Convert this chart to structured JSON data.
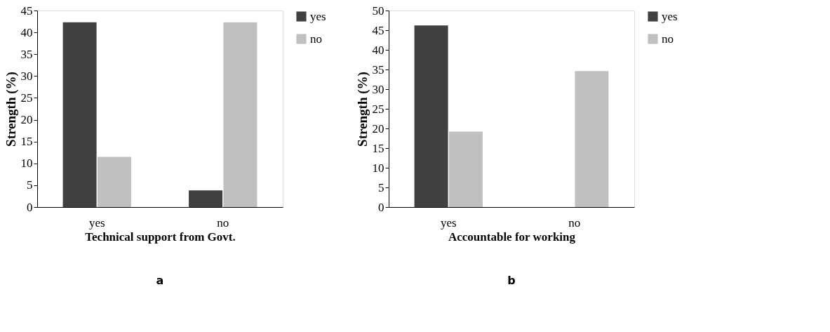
{
  "chart_data": [
    {
      "type": "bar",
      "xlabel": "Technical support from Govt.",
      "ylabel": "Strength (%)",
      "categories": [
        "yes",
        "no"
      ],
      "series": [
        {
          "name": "yes",
          "color": "#404040",
          "values": [
            42.3,
            3.8
          ]
        },
        {
          "name": "no",
          "color": "#c0c0c0",
          "values": [
            11.5,
            42.3
          ]
        }
      ],
      "ylim": [
        0,
        45
      ],
      "yticks": [
        0,
        5,
        10,
        15,
        20,
        25,
        30,
        35,
        40,
        45
      ],
      "grid": false,
      "legend": "right",
      "annotations": [
        "a"
      ]
    },
    {
      "type": "bar",
      "xlabel": "Accountable for working",
      "ylabel": "Strength (%)",
      "categories": [
        "yes",
        "no"
      ],
      "series": [
        {
          "name": "yes",
          "color": "#404040",
          "values": [
            46.2,
            0
          ]
        },
        {
          "name": "no",
          "color": "#c0c0c0",
          "values": [
            19.2,
            34.6
          ]
        }
      ],
      "ylim": [
        0,
        50
      ],
      "yticks": [
        0,
        5,
        10,
        15,
        20,
        25,
        30,
        35,
        40,
        45,
        50
      ],
      "grid": false,
      "legend": "right",
      "annotations": [
        "b"
      ]
    }
  ]
}
